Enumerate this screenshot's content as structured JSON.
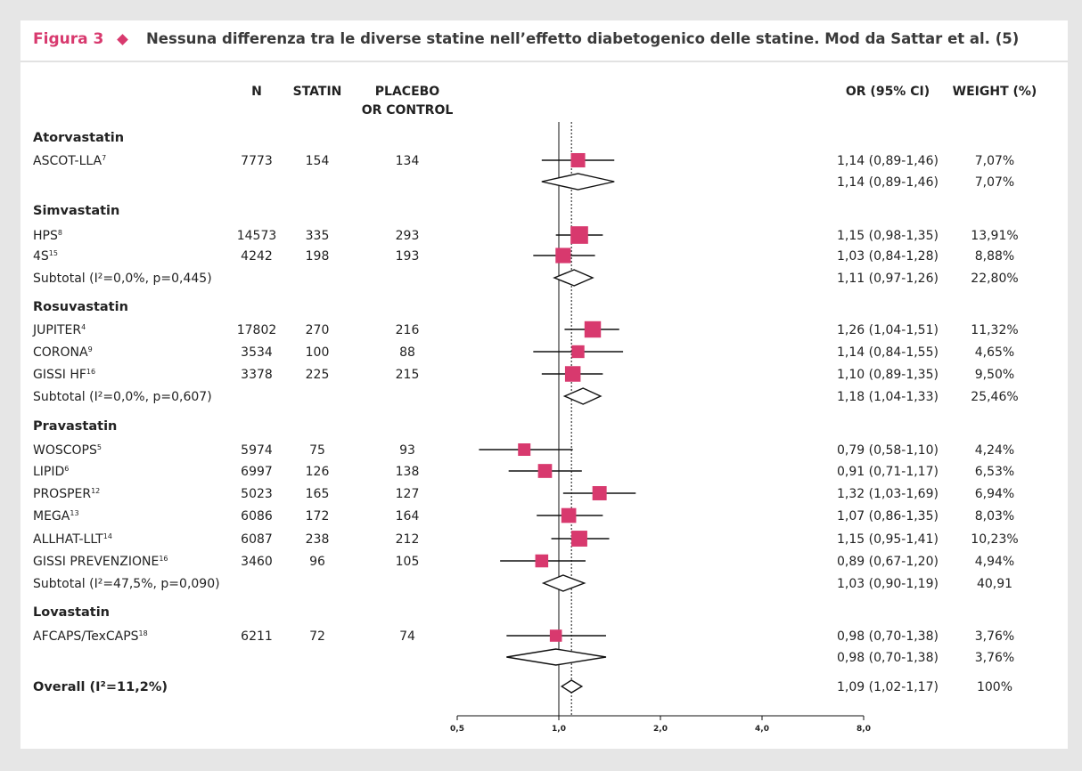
{
  "figure": {
    "label": "Figura 3",
    "title": "Nessuna differenza tra le diverse statine nell’effetto diabetogenico delle statine. Mod da Sattar et al. (5)"
  },
  "columns": {
    "n": "N",
    "statin": "STATIN",
    "placebo_line1": "PLACEBO",
    "placebo_line2": "OR CONTROL",
    "or": "OR (95% CI)",
    "weight": "WEIGHT (%)"
  },
  "colors": {
    "accent": "#d8396e",
    "text": "#222222",
    "line": "#111111"
  },
  "chart_data": {
    "type": "forest",
    "title": "",
    "xlabel": "",
    "ylabel": "",
    "x_scale": "log",
    "x_ticks": [
      0.5,
      1.0,
      2.0,
      4.0,
      8.0
    ],
    "x_tick_labels": [
      "0,5",
      "1,0",
      "2,0",
      "4,0",
      "8,0"
    ],
    "xlim": [
      0.5,
      8.0
    ],
    "null_line": 1.0,
    "overall_line": 1.09,
    "rows": [
      {
        "kind": "group",
        "label": "Atorvastatin"
      },
      {
        "kind": "study",
        "label": "ASCOT-LLA",
        "sup": "7",
        "n": "7773",
        "statin": "154",
        "placebo": "134",
        "or": 1.14,
        "lo": 0.89,
        "hi": 1.46,
        "or_text": "1,14 (0,89-1,46)",
        "weight": 7.07,
        "weight_text": "7,07%"
      },
      {
        "kind": "subtotal",
        "label": "",
        "or": 1.14,
        "lo": 0.89,
        "hi": 1.46,
        "or_text": "1,14 (0,89-1,46)",
        "weight_text": "7,07%"
      },
      {
        "kind": "group",
        "label": "Simvastatin"
      },
      {
        "kind": "study",
        "label": "HPS",
        "sup": "8",
        "n": "14573",
        "statin": "335",
        "placebo": "293",
        "or": 1.15,
        "lo": 0.98,
        "hi": 1.35,
        "or_text": "1,15 (0,98-1,35)",
        "weight": 13.91,
        "weight_text": "13,91%"
      },
      {
        "kind": "study",
        "label": "4S",
        "sup": "15",
        "n": "4242",
        "statin": "198",
        "placebo": "193",
        "or": 1.03,
        "lo": 0.84,
        "hi": 1.28,
        "or_text": "1,03 (0,84-1,28)",
        "weight": 8.88,
        "weight_text": "8,88%"
      },
      {
        "kind": "subtotal",
        "label": "Subtotal (I²=0,0%, p=0,445)",
        "or": 1.11,
        "lo": 0.97,
        "hi": 1.26,
        "or_text": "1,11 (0,97-1,26)",
        "weight_text": "22,80%"
      },
      {
        "kind": "group",
        "label": "Rosuvastatin"
      },
      {
        "kind": "study",
        "label": "JUPITER",
        "sup": "4",
        "n": "17802",
        "statin": "270",
        "placebo": "216",
        "or": 1.26,
        "lo": 1.04,
        "hi": 1.51,
        "or_text": "1,26 (1,04-1,51)",
        "weight": 11.32,
        "weight_text": "11,32%"
      },
      {
        "kind": "study",
        "label": "CORONA",
        "sup": "9",
        "n": "3534",
        "statin": "100",
        "placebo": "88",
        "or": 1.14,
        "lo": 0.84,
        "hi": 1.55,
        "or_text": "1,14 (0,84-1,55)",
        "weight": 4.65,
        "weight_text": "4,65%"
      },
      {
        "kind": "study",
        "label": "GISSI HF",
        "sup": "16",
        "n": "3378",
        "statin": "225",
        "placebo": "215",
        "or": 1.1,
        "lo": 0.89,
        "hi": 1.35,
        "or_text": "1,10 (0,89-1,35)",
        "weight": 9.5,
        "weight_text": "9,50%"
      },
      {
        "kind": "subtotal",
        "label": "Subtotal (I²=0,0%, p=0,607)",
        "or": 1.18,
        "lo": 1.04,
        "hi": 1.33,
        "or_text": "1,18 (1,04-1,33)",
        "weight_text": "25,46%"
      },
      {
        "kind": "group",
        "label": "Pravastatin"
      },
      {
        "kind": "study",
        "label": "WOSCOPS",
        "sup": "5",
        "n": "5974",
        "statin": "75",
        "placebo": "93",
        "or": 0.79,
        "lo": 0.58,
        "hi": 1.1,
        "or_text": "0,79 (0,58-1,10)",
        "weight": 4.24,
        "weight_text": "4,24%"
      },
      {
        "kind": "study",
        "label": "LIPID",
        "sup": "6",
        "n": "6997",
        "statin": "126",
        "placebo": "138",
        "or": 0.91,
        "lo": 0.71,
        "hi": 1.17,
        "or_text": "0,91 (0,71-1,17)",
        "weight": 6.53,
        "weight_text": "6,53%"
      },
      {
        "kind": "study",
        "label": "PROSPER",
        "sup": "12",
        "n": "5023",
        "statin": "165",
        "placebo": "127",
        "or": 1.32,
        "lo": 1.03,
        "hi": 1.69,
        "or_text": "1,32 (1,03-1,69)",
        "weight": 6.94,
        "weight_text": "6,94%"
      },
      {
        "kind": "study",
        "label": "MEGA",
        "sup": "13",
        "n": "6086",
        "statin": "172",
        "placebo": "164",
        "or": 1.07,
        "lo": 0.86,
        "hi": 1.35,
        "or_text": "1,07 (0,86-1,35)",
        "weight": 8.03,
        "weight_text": "8,03%"
      },
      {
        "kind": "study",
        "label": "ALLHAT-LLT",
        "sup": "14",
        "n": "6087",
        "statin": "238",
        "placebo": "212",
        "or": 1.15,
        "lo": 0.95,
        "hi": 1.41,
        "or_text": "1,15 (0,95-1,41)",
        "weight": 10.23,
        "weight_text": "10,23%"
      },
      {
        "kind": "study",
        "label": "GISSI PREVENZIONE",
        "sup": "16",
        "n": "3460",
        "statin": "96",
        "placebo": "105",
        "or": 0.89,
        "lo": 0.67,
        "hi": 1.2,
        "or_text": "0,89 (0,67-1,20)",
        "weight": 4.94,
        "weight_text": "4,94%"
      },
      {
        "kind": "subtotal",
        "label": "Subtotal (I²=47,5%, p=0,090)",
        "or": 1.03,
        "lo": 0.9,
        "hi": 1.19,
        "or_text": "1,03 (0,90-1,19)",
        "weight_text": "40,91"
      },
      {
        "kind": "group",
        "label": "Lovastatin"
      },
      {
        "kind": "study",
        "label": "AFCAPS/TexCAPS",
        "sup": "18",
        "n": "6211",
        "statin": "72",
        "placebo": "74",
        "or": 0.98,
        "lo": 0.7,
        "hi": 1.38,
        "or_text": "0,98 (0,70-1,38)",
        "weight": 3.76,
        "weight_text": "3,76%"
      },
      {
        "kind": "subtotal",
        "label": "",
        "or": 0.98,
        "lo": 0.7,
        "hi": 1.38,
        "or_text": "0,98 (0,70-1,38)",
        "weight_text": "3,76%"
      },
      {
        "kind": "overall",
        "label": "Overall (I²=11,2%)",
        "or": 1.09,
        "lo": 1.02,
        "hi": 1.17,
        "or_text": "1,09 (1,02-1,17)",
        "weight_text": "100%"
      }
    ]
  }
}
